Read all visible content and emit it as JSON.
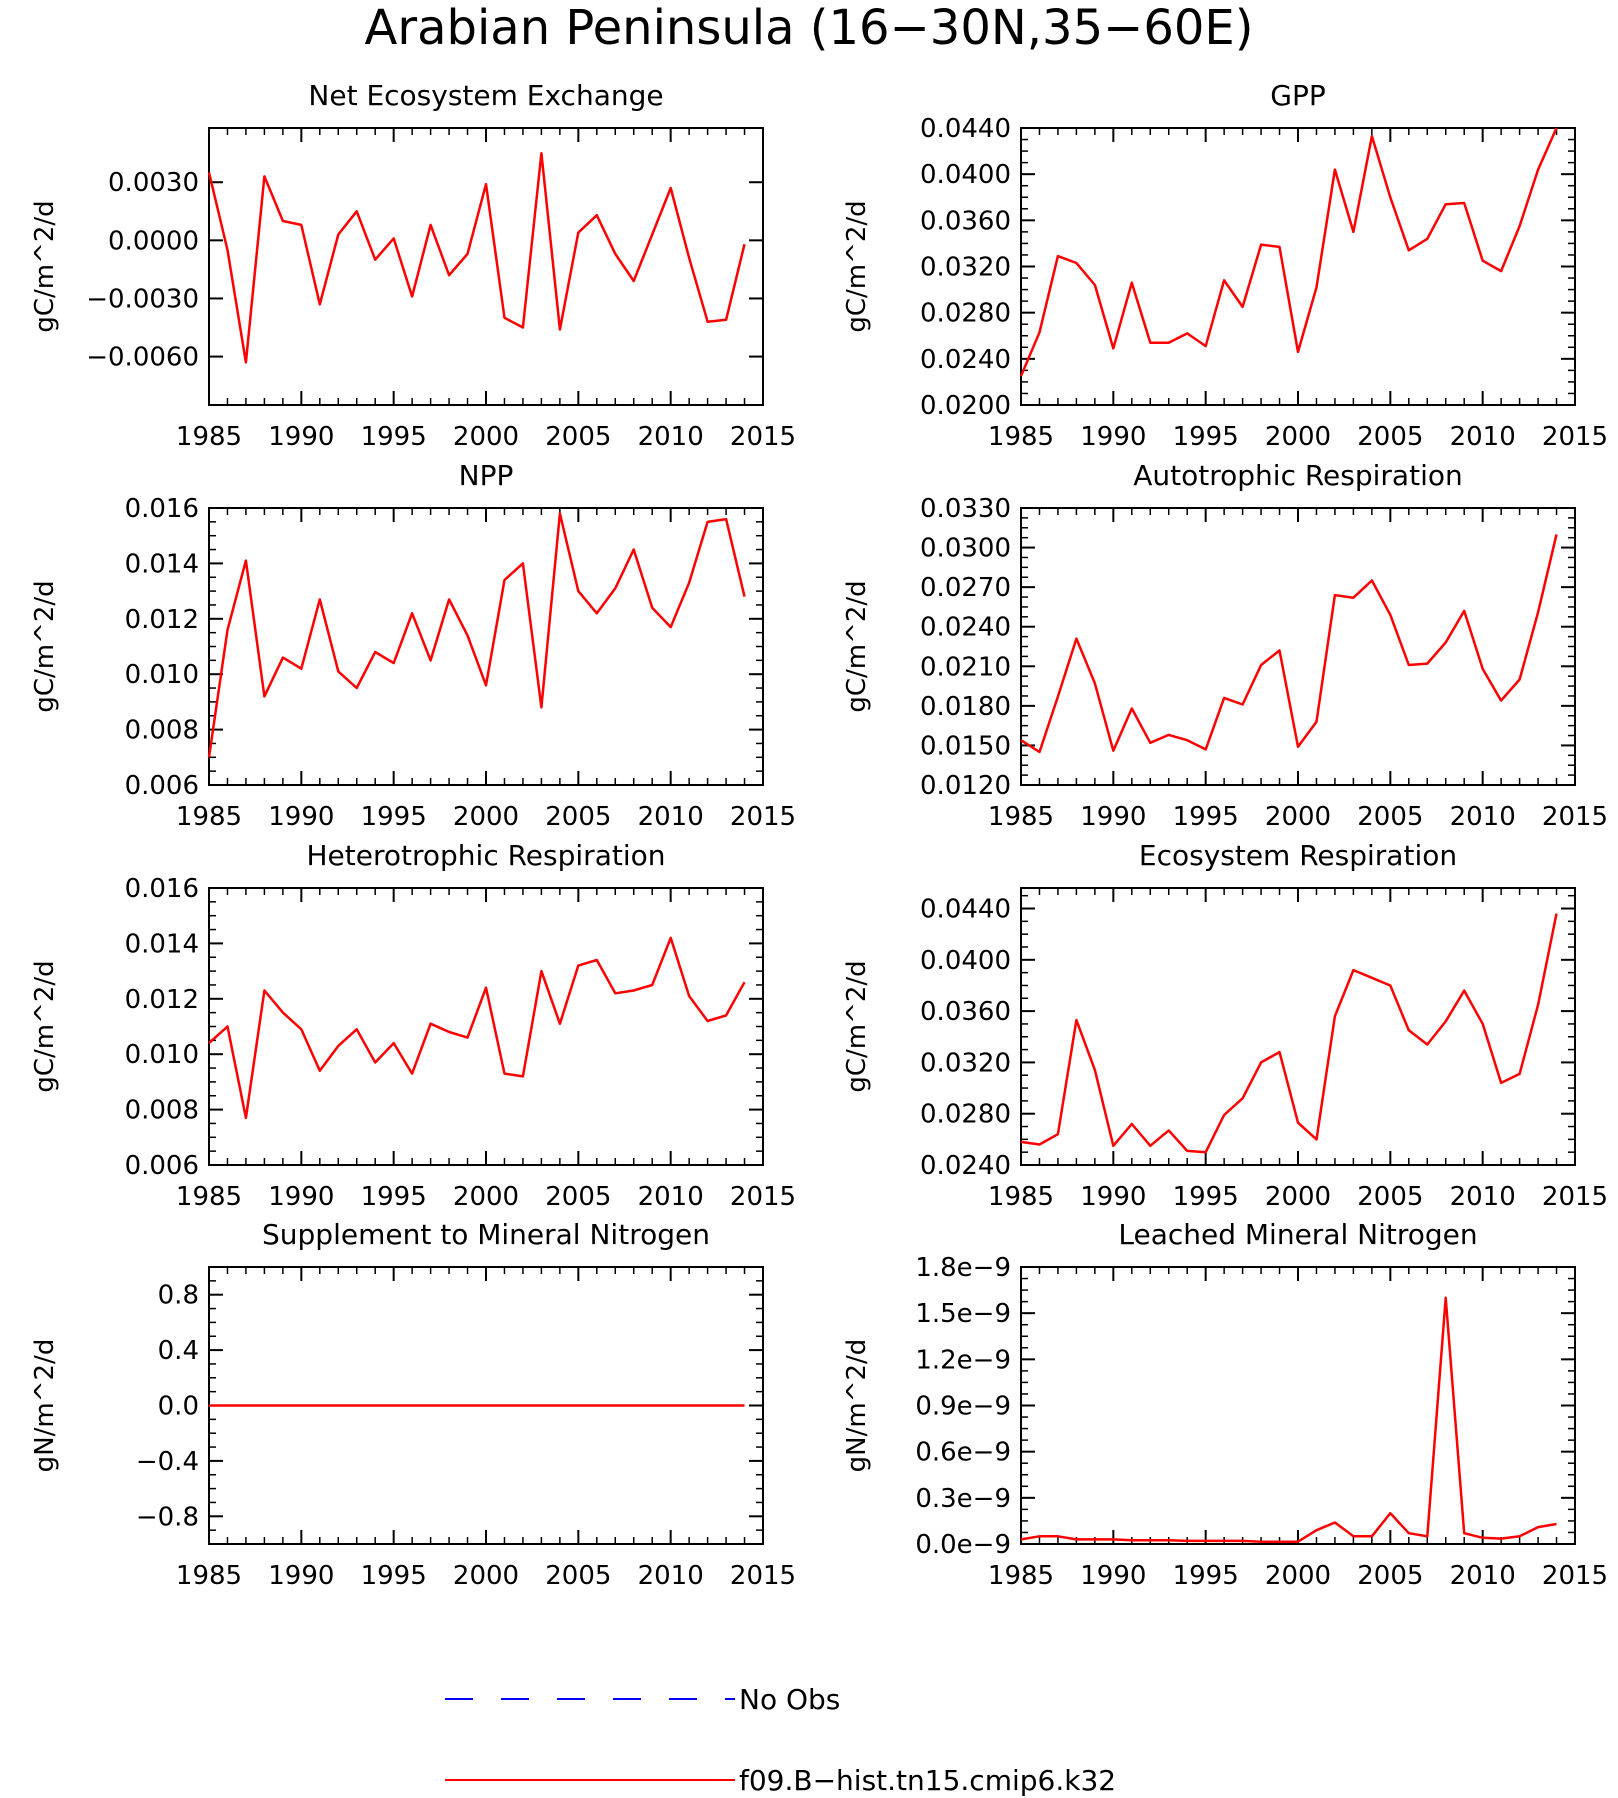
{
  "title": "Arabian Peninsula (16−30N,35−60E)",
  "colors": {
    "model": "#ff0000",
    "obs": "#0000ff",
    "axis": "#000000",
    "background": "#ffffff"
  },
  "legend": [
    {
      "label": "No Obs",
      "color": "#0000ff",
      "dash": true
    },
    {
      "label": "f09.B−hist.tn15.cmip6.k32",
      "color": "#ff0000",
      "dash": false
    }
  ],
  "chart_data": [
    {
      "type": "line",
      "title": "Net Ecosystem Exchange",
      "ylabel": "gC/m^2/d",
      "xlim": [
        1985,
        2015
      ],
      "ylim": [
        -0.0085,
        0.0058
      ],
      "xticks": [
        "1985",
        "1990",
        "1995",
        "2000",
        "2005",
        "2010",
        "2015"
      ],
      "yticks": [
        {
          "v": 0.003,
          "label": "0.0030"
        },
        {
          "v": 0.0,
          "label": "0.0000"
        },
        {
          "v": -0.003,
          "label": "−0.0030"
        },
        {
          "v": -0.006,
          "label": "−0.0060"
        }
      ],
      "x": [
        1985,
        1986,
        1987,
        1988,
        1989,
        1990,
        1991,
        1992,
        1993,
        1994,
        1995,
        1996,
        1997,
        1998,
        1999,
        2000,
        2001,
        2002,
        2003,
        2004,
        2005,
        2006,
        2007,
        2008,
        2009,
        2010,
        2011,
        2012,
        2013,
        2014
      ],
      "series": [
        {
          "values": [
            0.0035,
            -0.0005,
            -0.0063,
            0.0033,
            0.001,
            0.0008,
            -0.0033,
            0.0003,
            0.0015,
            -0.001,
            0.0001,
            -0.0029,
            0.0008,
            -0.0018,
            -0.0007,
            0.0029,
            -0.004,
            -0.0045,
            0.0045,
            -0.0046,
            0.0004,
            0.0013,
            -0.0007,
            -0.0021,
            0.0003,
            0.0027,
            -0.0009,
            -0.0042,
            -0.0041,
            -0.0002
          ]
        }
      ]
    },
    {
      "type": "line",
      "title": "GPP",
      "ylabel": "gC/m^2/d",
      "xlim": [
        1985,
        2015
      ],
      "ylim": [
        0.02,
        0.044
      ],
      "xticks": [
        "1985",
        "1990",
        "1995",
        "2000",
        "2005",
        "2010",
        "2015"
      ],
      "yticks": [
        {
          "v": 0.02,
          "label": "0.0200"
        },
        {
          "v": 0.024,
          "label": "0.0240"
        },
        {
          "v": 0.028,
          "label": "0.0280"
        },
        {
          "v": 0.032,
          "label": "0.0320"
        },
        {
          "v": 0.036,
          "label": "0.0360"
        },
        {
          "v": 0.04,
          "label": "0.0400"
        },
        {
          "v": 0.044,
          "label": "0.0440"
        }
      ],
      "x": [
        1985,
        1986,
        1987,
        1988,
        1989,
        1990,
        1991,
        1992,
        1993,
        1994,
        1995,
        1996,
        1997,
        1998,
        1999,
        2000,
        2001,
        2002,
        2003,
        2004,
        2005,
        2006,
        2007,
        2008,
        2009,
        2010,
        2011,
        2012,
        2013,
        2014
      ],
      "series": [
        {
          "values": [
            0.0225,
            0.0263,
            0.0329,
            0.0323,
            0.0304,
            0.0249,
            0.0306,
            0.0254,
            0.0254,
            0.0262,
            0.0251,
            0.0308,
            0.0285,
            0.0339,
            0.0337,
            0.0246,
            0.0302,
            0.0404,
            0.035,
            0.0433,
            0.038,
            0.0334,
            0.0344,
            0.0374,
            0.0375,
            0.0325,
            0.0316,
            0.0355,
            0.0404,
            0.044
          ]
        }
      ]
    },
    {
      "type": "line",
      "title": "NPP",
      "ylabel": "gC/m^2/d",
      "xlim": [
        1985,
        2015
      ],
      "ylim": [
        0.006,
        0.016
      ],
      "xticks": [
        "1985",
        "1990",
        "1995",
        "2000",
        "2005",
        "2010",
        "2015"
      ],
      "yticks": [
        {
          "v": 0.006,
          "label": "0.006"
        },
        {
          "v": 0.008,
          "label": "0.008"
        },
        {
          "v": 0.01,
          "label": "0.010"
        },
        {
          "v": 0.012,
          "label": "0.012"
        },
        {
          "v": 0.014,
          "label": "0.014"
        },
        {
          "v": 0.016,
          "label": "0.016"
        }
      ],
      "x": [
        1985,
        1986,
        1987,
        1988,
        1989,
        1990,
        1991,
        1992,
        1993,
        1994,
        1995,
        1996,
        1997,
        1998,
        1999,
        2000,
        2001,
        2002,
        2003,
        2004,
        2005,
        2006,
        2007,
        2008,
        2009,
        2010,
        2011,
        2012,
        2013,
        2014
      ],
      "series": [
        {
          "values": [
            0.007,
            0.0116,
            0.0141,
            0.0092,
            0.0106,
            0.0102,
            0.0127,
            0.0101,
            0.0095,
            0.0108,
            0.0104,
            0.0122,
            0.0105,
            0.0127,
            0.0114,
            0.0096,
            0.0134,
            0.014,
            0.0088,
            0.0158,
            0.013,
            0.0122,
            0.0131,
            0.0145,
            0.0124,
            0.0117,
            0.0133,
            0.0155,
            0.0156,
            0.0128
          ]
        }
      ]
    },
    {
      "type": "line",
      "title": "Autotrophic Respiration",
      "ylabel": "gC/m^2/d",
      "xlim": [
        1985,
        2015
      ],
      "ylim": [
        0.012,
        0.033
      ],
      "xticks": [
        "1985",
        "1990",
        "1995",
        "2000",
        "2005",
        "2010",
        "2015"
      ],
      "yticks": [
        {
          "v": 0.012,
          "label": "0.0120"
        },
        {
          "v": 0.015,
          "label": "0.0150"
        },
        {
          "v": 0.018,
          "label": "0.0180"
        },
        {
          "v": 0.021,
          "label": "0.0210"
        },
        {
          "v": 0.024,
          "label": "0.0240"
        },
        {
          "v": 0.027,
          "label": "0.0270"
        },
        {
          "v": 0.03,
          "label": "0.0300"
        },
        {
          "v": 0.033,
          "label": "0.0330"
        }
      ],
      "x": [
        1985,
        1986,
        1987,
        1988,
        1989,
        1990,
        1991,
        1992,
        1993,
        1994,
        1995,
        1996,
        1997,
        1998,
        1999,
        2000,
        2001,
        2002,
        2003,
        2004,
        2005,
        2006,
        2007,
        2008,
        2009,
        2010,
        2011,
        2012,
        2013,
        2014
      ],
      "series": [
        {
          "values": [
            0.0154,
            0.0145,
            0.0187,
            0.0231,
            0.0197,
            0.0146,
            0.0178,
            0.0152,
            0.0158,
            0.0154,
            0.0147,
            0.0186,
            0.0181,
            0.0211,
            0.0222,
            0.0149,
            0.0168,
            0.0264,
            0.0262,
            0.0275,
            0.0249,
            0.0211,
            0.0212,
            0.0228,
            0.0252,
            0.0208,
            0.0184,
            0.02,
            0.0251,
            0.031
          ]
        }
      ]
    },
    {
      "type": "line",
      "title": "Heterotrophic Respiration",
      "ylabel": "gC/m^2/d",
      "xlim": [
        1985,
        2015
      ],
      "ylim": [
        0.006,
        0.016
      ],
      "xticks": [
        "1985",
        "1990",
        "1995",
        "2000",
        "2005",
        "2010",
        "2015"
      ],
      "yticks": [
        {
          "v": 0.006,
          "label": "0.006"
        },
        {
          "v": 0.008,
          "label": "0.008"
        },
        {
          "v": 0.01,
          "label": "0.010"
        },
        {
          "v": 0.012,
          "label": "0.012"
        },
        {
          "v": 0.014,
          "label": "0.014"
        },
        {
          "v": 0.016,
          "label": "0.016"
        }
      ],
      "x": [
        1985,
        1986,
        1987,
        1988,
        1989,
        1990,
        1991,
        1992,
        1993,
        1994,
        1995,
        1996,
        1997,
        1998,
        1999,
        2000,
        2001,
        2002,
        2003,
        2004,
        2005,
        2006,
        2007,
        2008,
        2009,
        2010,
        2011,
        2012,
        2013,
        2014
      ],
      "series": [
        {
          "values": [
            0.0104,
            0.011,
            0.0077,
            0.0123,
            0.0115,
            0.0109,
            0.0094,
            0.0103,
            0.0109,
            0.0097,
            0.0104,
            0.0093,
            0.0111,
            0.0108,
            0.0106,
            0.0124,
            0.0093,
            0.0092,
            0.013,
            0.0111,
            0.0132,
            0.0134,
            0.0122,
            0.0123,
            0.0125,
            0.0142,
            0.0121,
            0.0112,
            0.0114,
            0.0126
          ]
        }
      ]
    },
    {
      "type": "line",
      "title": "Ecosystem Respiration",
      "ylabel": "gC/m^2/d",
      "xlim": [
        1985,
        2015
      ],
      "ylim": [
        0.024,
        0.0456
      ],
      "xticks": [
        "1985",
        "1990",
        "1995",
        "2000",
        "2005",
        "2010",
        "2015"
      ],
      "yticks": [
        {
          "v": 0.024,
          "label": "0.0240"
        },
        {
          "v": 0.028,
          "label": "0.0280"
        },
        {
          "v": 0.032,
          "label": "0.0320"
        },
        {
          "v": 0.036,
          "label": "0.0360"
        },
        {
          "v": 0.04,
          "label": "0.0400"
        },
        {
          "v": 0.044,
          "label": "0.0440"
        }
      ],
      "x": [
        1985,
        1986,
        1987,
        1988,
        1989,
        1990,
        1991,
        1992,
        1993,
        1994,
        1995,
        1996,
        1997,
        1998,
        1999,
        2000,
        2001,
        2002,
        2003,
        2004,
        2005,
        2006,
        2007,
        2008,
        2009,
        2010,
        2011,
        2012,
        2013,
        2014
      ],
      "series": [
        {
          "values": [
            0.0258,
            0.0256,
            0.0264,
            0.0353,
            0.0314,
            0.0255,
            0.0272,
            0.0255,
            0.0267,
            0.0251,
            0.025,
            0.0279,
            0.0292,
            0.032,
            0.0328,
            0.0273,
            0.026,
            0.0356,
            0.0392,
            0.0386,
            0.038,
            0.0345,
            0.0334,
            0.0352,
            0.0376,
            0.035,
            0.0304,
            0.0311,
            0.0365,
            0.0436
          ]
        }
      ]
    },
    {
      "type": "line",
      "title": "Supplement to Mineral Nitrogen",
      "ylabel": "gN/m^2/d",
      "xlim": [
        1985,
        2015
      ],
      "ylim": [
        -1.0,
        1.0
      ],
      "xticks": [
        "1985",
        "1990",
        "1995",
        "2000",
        "2005",
        "2010",
        "2015"
      ],
      "yticks": [
        {
          "v": -0.8,
          "label": "−0.8"
        },
        {
          "v": -0.4,
          "label": "−0.4"
        },
        {
          "v": 0.0,
          "label": "0.0"
        },
        {
          "v": 0.4,
          "label": "0.4"
        },
        {
          "v": 0.8,
          "label": "0.8"
        }
      ],
      "x": [
        1985,
        1986,
        1987,
        1988,
        1989,
        1990,
        1991,
        1992,
        1993,
        1994,
        1995,
        1996,
        1997,
        1998,
        1999,
        2000,
        2001,
        2002,
        2003,
        2004,
        2005,
        2006,
        2007,
        2008,
        2009,
        2010,
        2011,
        2012,
        2013,
        2014
      ],
      "series": [
        {
          "values": [
            0,
            0,
            0,
            0,
            0,
            0,
            0,
            0,
            0,
            0,
            0,
            0,
            0,
            0,
            0,
            0,
            0,
            0,
            0,
            0,
            0,
            0,
            0,
            0,
            0,
            0,
            0,
            0,
            0,
            0
          ]
        }
      ]
    },
    {
      "type": "line",
      "title": "Leached Mineral Nitrogen",
      "ylabel": "gN/m^2/d",
      "xlim": [
        1985,
        2015
      ],
      "ylim": [
        0.0,
        1.8e-09
      ],
      "xticks": [
        "1985",
        "1990",
        "1995",
        "2000",
        "2005",
        "2010",
        "2015"
      ],
      "yticks": [
        {
          "v": 0.0,
          "label": "0.0e−9"
        },
        {
          "v": 3e-10,
          "label": "0.3e−9"
        },
        {
          "v": 6e-10,
          "label": "0.6e−9"
        },
        {
          "v": 9e-10,
          "label": "0.9e−9"
        },
        {
          "v": 1.2e-09,
          "label": "1.2e−9"
        },
        {
          "v": 1.5e-09,
          "label": "1.5e−9"
        },
        {
          "v": 1.8e-09,
          "label": "1.8e−9"
        }
      ],
      "x": [
        1985,
        1986,
        1987,
        1988,
        1989,
        1990,
        1991,
        1992,
        1993,
        1994,
        1995,
        1996,
        1997,
        1998,
        1999,
        2000,
        2001,
        2002,
        2003,
        2004,
        2005,
        2006,
        2007,
        2008,
        2009,
        2010,
        2011,
        2012,
        2013,
        2014
      ],
      "series": [
        {
          "values": [
            3e-11,
            5e-11,
            5e-11,
            3e-11,
            3e-11,
            3e-11,
            2.5e-11,
            2.5e-11,
            2.5e-11,
            2e-11,
            2e-11,
            2e-11,
            2e-11,
            1.5e-11,
            1.5e-11,
            1.5e-11,
            9e-11,
            1.4e-10,
            5e-11,
            5e-11,
            2e-10,
            7e-11,
            5e-11,
            1.6e-09,
            7e-11,
            4e-11,
            3.5e-11,
            5e-11,
            1.1e-10,
            1.3e-10
          ]
        }
      ]
    }
  ]
}
